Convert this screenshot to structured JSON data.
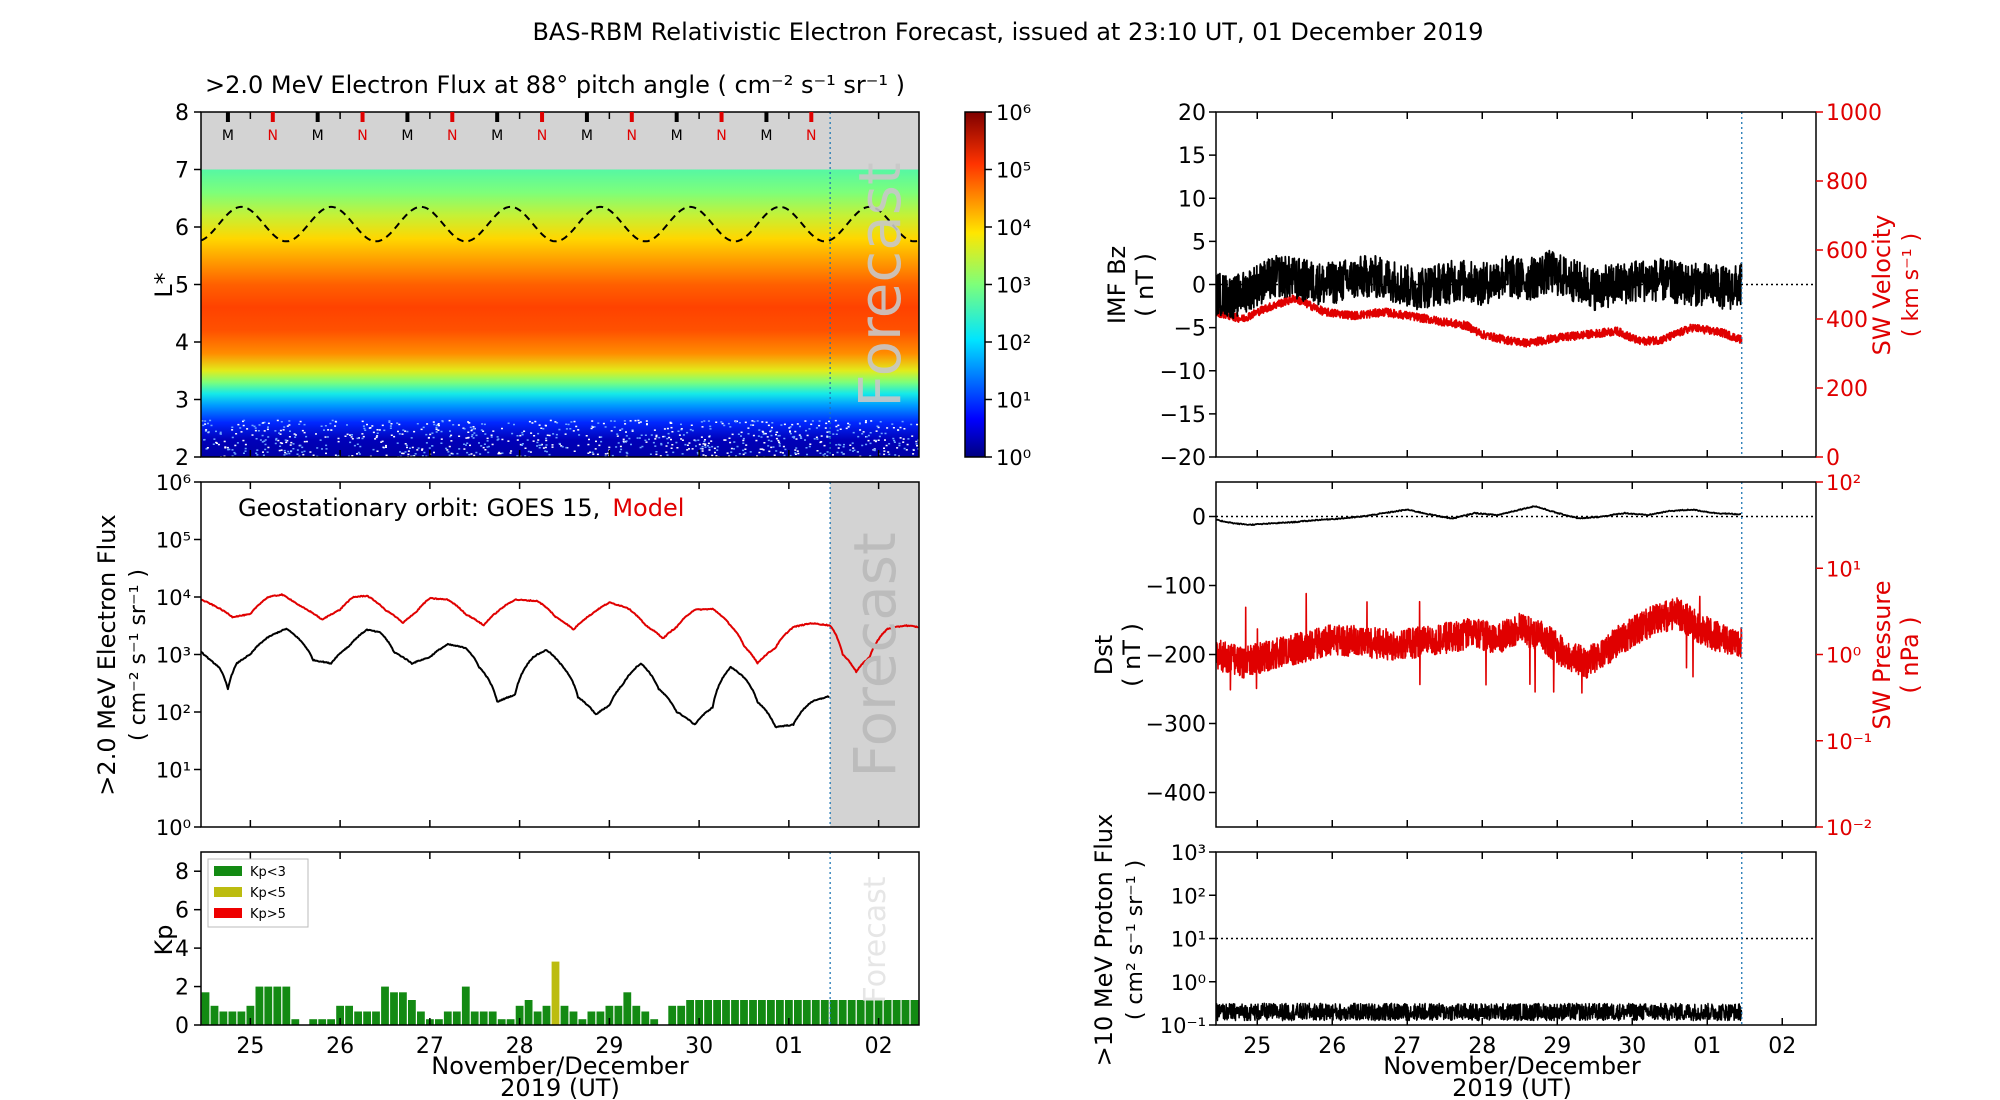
{
  "figure": {
    "title": "BAS-RBM Relativistic Electron Forecast, issued at 23:10 UT, 01 December 2019",
    "xlabel_line1": "November/December",
    "xlabel_line2": "2019 (UT)",
    "day_ticks": [
      "25",
      "26",
      "27",
      "28",
      "29",
      "30",
      "01",
      "02"
    ],
    "forecast_label": "Forecast"
  },
  "chart_data": [
    {
      "id": "lstar-flux-map",
      "type": "heatmap",
      "title": ">2.0 MeV Electron Flux at 88° pitch angle ( cm⁻² s⁻¹ sr⁻¹ )",
      "ylabel": "L*",
      "x_range_days": [
        24.45,
        32.45
      ],
      "ylim": [
        2,
        8
      ],
      "yticks": [
        2,
        3,
        4,
        5,
        6,
        7,
        8
      ],
      "forecast_start_day": 31.46,
      "model_upper_L": 7,
      "flux_profile_log10": [
        {
          "L": 2.0,
          "v": 0.2
        },
        {
          "L": 2.3,
          "v": 0.3
        },
        {
          "L": 2.6,
          "v": 0.9
        },
        {
          "L": 2.9,
          "v": 1.6
        },
        {
          "L": 3.1,
          "v": 2.2
        },
        {
          "L": 3.3,
          "v": 3.0
        },
        {
          "L": 3.5,
          "v": 3.7
        },
        {
          "L": 3.8,
          "v": 4.5
        },
        {
          "L": 4.2,
          "v": 4.9
        },
        {
          "L": 4.6,
          "v": 5.0
        },
        {
          "L": 5.0,
          "v": 4.8
        },
        {
          "L": 5.4,
          "v": 4.4
        },
        {
          "L": 5.8,
          "v": 4.0
        },
        {
          "L": 6.2,
          "v": 3.5
        },
        {
          "L": 6.6,
          "v": 3.0
        },
        {
          "L": 7.0,
          "v": 2.7
        }
      ],
      "magnetopause_L_dashed": {
        "mean": 6.05,
        "amplitude": 0.3
      },
      "orbit_markers": [
        "M",
        "N",
        "M",
        "N",
        "M",
        "N",
        "M",
        "N",
        "M",
        "N",
        "M",
        "N",
        "M",
        "N"
      ],
      "orbit_marker_colors": {
        "M": "#000000",
        "N": "#e00000"
      },
      "colorbar": {
        "min_exp": 0,
        "max_exp": 6,
        "tick_labels": [
          "10⁰",
          "10¹",
          "10²",
          "10³",
          "10⁴",
          "10⁵",
          "10⁶"
        ]
      }
    },
    {
      "id": "geo-flux",
      "type": "line",
      "ylabel_line1": ">2.0 MeV Electron Flux",
      "ylabel_line2": "( cm⁻² s⁻¹ sr⁻¹ )",
      "annotation_prefix": "Geostationary orbit:   GOES 15,",
      "annotation_model": "Model",
      "ylim": [
        1,
        1000000
      ],
      "yscale": "log",
      "ytick_labels": [
        "10⁰",
        "10¹",
        "10²",
        "10³",
        "10⁴",
        "10⁵",
        "10⁶"
      ],
      "series": [
        {
          "name": "GOES 15",
          "color": "#000000",
          "x": [
            24.45,
            24.55,
            24.65,
            24.75,
            24.85,
            25.0,
            25.2,
            25.4,
            25.55,
            25.7,
            25.9,
            26.1,
            26.3,
            26.45,
            26.6,
            26.8,
            27.0,
            27.2,
            27.4,
            27.55,
            27.75,
            27.95,
            28.15,
            28.3,
            28.45,
            28.65,
            28.85,
            29.0,
            29.15,
            29.35,
            29.55,
            29.75,
            29.95,
            30.15,
            30.35,
            30.5,
            30.65,
            30.85,
            31.05,
            31.25,
            31.46
          ],
          "y": [
            1100,
            800,
            600,
            250,
            700,
            1000,
            2000,
            2800,
            1800,
            800,
            700,
            1400,
            2700,
            2400,
            1100,
            700,
            900,
            1500,
            1300,
            600,
            150,
            200,
            900,
            1200,
            700,
            180,
            90,
            130,
            300,
            700,
            250,
            100,
            60,
            120,
            600,
            400,
            150,
            55,
            60,
            150,
            190
          ]
        },
        {
          "name": "Model",
          "color": "#e00000",
          "x": [
            24.45,
            24.6,
            24.8,
            25.0,
            25.2,
            25.35,
            25.55,
            25.8,
            26.0,
            26.15,
            26.3,
            26.5,
            26.7,
            26.85,
            27.0,
            27.2,
            27.4,
            27.6,
            27.75,
            27.95,
            28.2,
            28.4,
            28.6,
            28.8,
            29.0,
            29.2,
            29.4,
            29.6,
            29.75,
            29.95,
            30.15,
            30.35,
            30.5,
            30.65,
            30.85,
            31.05,
            31.25,
            31.46,
            31.6,
            31.75,
            31.9,
            32.1,
            32.3,
            32.45
          ],
          "y": [
            9000,
            7000,
            4500,
            5000,
            10000,
            11000,
            7000,
            4000,
            6000,
            10000,
            10500,
            6000,
            3500,
            5500,
            9500,
            9000,
            5000,
            3200,
            5500,
            9000,
            8500,
            4500,
            2700,
            5000,
            8000,
            6500,
            3200,
            1900,
            3000,
            6000,
            6200,
            3200,
            1400,
            700,
            1300,
            3000,
            3500,
            3200,
            1000,
            500,
            900,
            2800,
            3200,
            3000
          ]
        }
      ]
    },
    {
      "id": "kp-index",
      "type": "bar",
      "ylabel": "Kp",
      "ylim": [
        0,
        9
      ],
      "yticks": [
        0,
        2,
        4,
        6,
        8
      ],
      "bar_width_days": 0.1,
      "first_bar_center": 24.5,
      "legend": [
        {
          "label": "Kp<3",
          "color": "#138a13"
        },
        {
          "label": "Kp<5",
          "color": "#bcbc10"
        },
        {
          "label": "Kp>5",
          "color": "#ee0000"
        }
      ],
      "values": [
        1.7,
        1.0,
        0.7,
        0.7,
        0.7,
        1.0,
        2.0,
        2.0,
        2.0,
        2.0,
        0.3,
        0.0,
        0.3,
        0.3,
        0.3,
        1.0,
        1.0,
        0.7,
        0.7,
        0.7,
        2.0,
        1.7,
        1.7,
        1.3,
        0.7,
        0.3,
        0.3,
        0.7,
        0.7,
        2.0,
        0.7,
        0.7,
        0.7,
        0.3,
        0.3,
        1.0,
        1.3,
        0.7,
        1.0,
        3.3,
        1.0,
        0.7,
        0.3,
        0.7,
        0.7,
        1.0,
        1.0,
        1.7,
        1.0,
        0.7,
        0.3,
        0.0,
        1.0,
        1.0,
        1.3,
        1.3,
        1.3,
        1.3,
        1.3,
        1.3,
        1.3,
        1.3,
        1.3,
        1.3,
        1.3,
        1.3,
        1.3,
        1.3,
        1.3,
        1.3,
        1.3,
        1.3,
        1.3,
        1.3,
        1.3,
        1.3,
        1.3,
        1.3,
        1.3,
        1.3
      ]
    },
    {
      "id": "imf-sw-velocity",
      "type": "line",
      "ylabel_left_line1": "IMF Bz",
      "ylabel_left_line2": "( nT )",
      "ylabel_right_line1": "SW Velocity",
      "ylabel_right_line2": "( km s⁻¹ )",
      "ylim_left": [
        -20,
        20
      ],
      "yticks_left": [
        -20,
        -15,
        -10,
        -5,
        0,
        5,
        10,
        15,
        20
      ],
      "ytick_labels_left": [
        "−20",
        "−15",
        "−10",
        "−5",
        "0",
        "5",
        "10",
        "15",
        "20"
      ],
      "ylim_right": [
        0,
        1000
      ],
      "yticks_right": [
        0,
        200,
        400,
        600,
        800,
        1000
      ],
      "series": [
        {
          "name": "IMF Bz",
          "color": "#000000",
          "x": [
            24.45,
            24.7,
            25.0,
            25.3,
            25.6,
            25.9,
            26.2,
            26.5,
            26.8,
            27.1,
            27.4,
            27.7,
            28.0,
            28.3,
            28.6,
            28.9,
            29.2,
            29.5,
            29.8,
            30.1,
            30.4,
            30.7,
            31.0,
            31.3,
            31.46
          ],
          "y": [
            -1.0,
            -1.5,
            0.0,
            1.0,
            0.5,
            0.0,
            0.5,
            1.0,
            0.5,
            -0.5,
            0.0,
            0.5,
            0.0,
            1.0,
            0.5,
            1.5,
            0.5,
            -0.5,
            0.0,
            0.5,
            0.5,
            0.0,
            0.0,
            -0.5,
            0.0
          ],
          "noise_amplitude": 2.5
        },
        {
          "name": "SW Velocity",
          "color": "#e00000",
          "x": [
            24.45,
            24.8,
            25.1,
            25.5,
            25.9,
            26.3,
            26.7,
            27.0,
            27.4,
            27.8,
            28.0,
            28.3,
            28.6,
            29.0,
            29.4,
            29.8,
            30.1,
            30.4,
            30.8,
            31.2,
            31.46
          ],
          "y": [
            420,
            400,
            430,
            460,
            420,
            410,
            420,
            410,
            395,
            380,
            355,
            340,
            330,
            345,
            355,
            365,
            335,
            340,
            375,
            360,
            340
          ],
          "noise_amplitude": 12
        }
      ]
    },
    {
      "id": "dst-sw-pressure",
      "type": "line",
      "ylabel_left_line1": "Dst",
      "ylabel_left_line2": "( nT )",
      "ylabel_right_line1": "SW Pressure",
      "ylabel_right_line2": "( nPa )",
      "ylim_left": [
        -450,
        50
      ],
      "yticks_left": [
        0,
        -100,
        -200,
        -300,
        -400
      ],
      "ytick_labels_left": [
        "0",
        "−100",
        "−200",
        "−300",
        "−400"
      ],
      "ylim_right_log": [
        0.01,
        100
      ],
      "ytick_labels_right": [
        "10⁻²",
        "10⁻¹",
        "10⁰",
        "10¹",
        "10²"
      ],
      "series": [
        {
          "name": "Dst",
          "color": "#000000",
          "x": [
            24.45,
            24.7,
            24.9,
            25.2,
            25.5,
            25.8,
            26.1,
            26.4,
            26.7,
            27.0,
            27.3,
            27.6,
            27.9,
            28.2,
            28.5,
            28.7,
            29.0,
            29.3,
            29.6,
            29.9,
            30.2,
            30.5,
            30.8,
            31.1,
            31.46
          ],
          "y": [
            -5,
            -10,
            -12,
            -10,
            -8,
            -5,
            -3,
            0,
            5,
            10,
            3,
            -3,
            5,
            2,
            10,
            15,
            5,
            -3,
            0,
            5,
            2,
            8,
            10,
            5,
            3
          ]
        },
        {
          "name": "SW Pressure",
          "color": "#e00000",
          "x": [
            24.45,
            24.8,
            25.2,
            25.6,
            26.0,
            26.4,
            26.8,
            27.2,
            27.6,
            27.9,
            28.2,
            28.5,
            28.8,
            29.1,
            29.4,
            29.7,
            30.0,
            30.3,
            30.6,
            30.9,
            31.2,
            31.46
          ],
          "y": [
            1.0,
            0.8,
            1.0,
            1.2,
            1.5,
            1.4,
            1.3,
            1.4,
            1.6,
            1.8,
            1.5,
            2.0,
            1.6,
            1.0,
            0.8,
            1.2,
            1.8,
            2.5,
            3.0,
            2.0,
            1.5,
            1.4
          ],
          "noise_log_amplitude": 0.18
        }
      ]
    },
    {
      "id": "proton-flux",
      "type": "line",
      "ylabel_line1": ">10 MeV Proton Flux",
      "ylabel_line2": "( cm² s⁻¹ sr⁻¹ )",
      "ylim_log": [
        0.1,
        1000
      ],
      "ytick_labels": [
        "10⁻¹",
        "10⁰",
        "10¹",
        "10²",
        "10³"
      ],
      "threshold": 10,
      "series": [
        {
          "name": "Proton Flux",
          "color": "#000000",
          "x": [
            24.45,
            31.46
          ],
          "y": [
            0.2,
            0.2
          ],
          "noise_log_amplitude": 0.2
        }
      ]
    }
  ]
}
